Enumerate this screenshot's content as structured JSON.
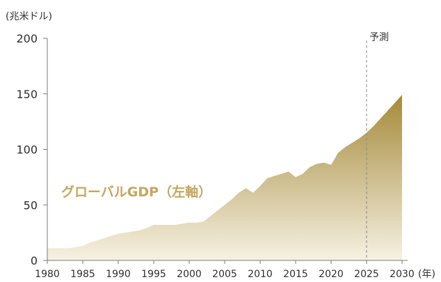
{
  "chart_data": {
    "type": "area",
    "y_unit_label": "(兆米ドル)",
    "x_unit_label": "(年)",
    "forecast_label": "予測",
    "series_label": "グローバルGDP（左軸）",
    "x_ticks": [
      "1980",
      "1985",
      "1990",
      "1995",
      "2000",
      "2005",
      "2010",
      "2015",
      "2020",
      "2025",
      "2030"
    ],
    "y_ticks": [
      "0",
      "50",
      "100",
      "150",
      "200"
    ],
    "xlim": [
      1980,
      2030
    ],
    "ylim": [
      0,
      200
    ],
    "forecast_start": 2025,
    "series": [
      {
        "x": [
          1980,
          1981,
          1982,
          1983,
          1984,
          1985,
          1986,
          1987,
          1988,
          1989,
          1990,
          1991,
          1992,
          1993,
          1994,
          1995,
          1996,
          1997,
          1998,
          1999,
          2000,
          2001,
          2002,
          2003,
          2004,
          2005,
          2006,
          2007,
          2008,
          2009,
          2010,
          2011,
          2012,
          2013,
          2014,
          2015,
          2016,
          2017,
          2018,
          2019,
          2020,
          2021,
          2022,
          2023,
          2024,
          2025,
          2026,
          2027,
          2028,
          2029,
          2030
        ],
        "values": [
          11,
          11,
          11,
          11,
          12,
          13,
          16,
          18,
          20,
          22,
          24,
          25,
          26,
          27,
          29,
          32,
          32,
          32,
          32,
          33,
          34,
          34,
          35,
          40,
          45,
          50,
          55,
          61,
          65,
          61,
          67,
          74,
          76,
          78,
          80,
          75,
          78,
          84,
          87,
          88,
          86,
          97,
          102,
          106,
          110,
          115,
          121,
          128,
          135,
          142,
          149
        ]
      }
    ],
    "colors": {
      "area_top": "#a58a3a",
      "area_bottom": "#f6f1e2",
      "axis": "#7a7a7a",
      "text": "#2e2e2e",
      "series_label": "#c4a660",
      "forecast_line": "#8a8a8a"
    }
  }
}
